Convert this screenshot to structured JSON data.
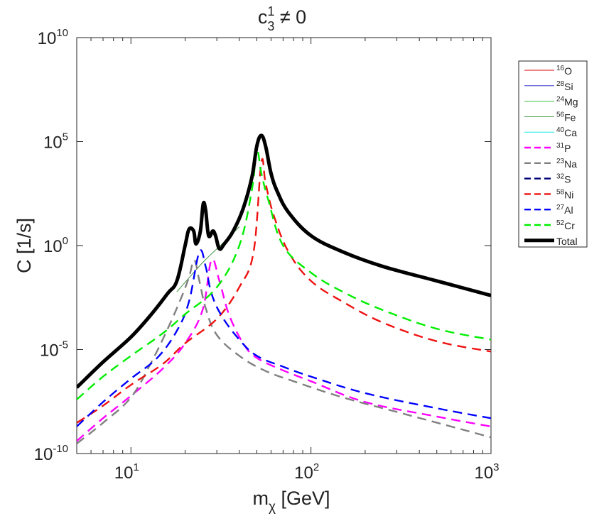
{
  "chart_data": {
    "type": "line",
    "title": {
      "base": "c",
      "sup": "1",
      "sub": "3",
      "rest": " ≠ 0"
    },
    "xlabel": {
      "base": "m",
      "sub": "χ",
      "rest": " [GeV]"
    },
    "ylabel": "C [1/s]",
    "x_scale": "log",
    "y_scale": "log",
    "xlim": [
      5,
      1000
    ],
    "ylim": [
      1e-10,
      10000000000.0
    ],
    "x_ticks": [
      {
        "value": 10,
        "base": "10",
        "exp": "1"
      },
      {
        "value": 100,
        "base": "10",
        "exp": "2"
      },
      {
        "value": 1000,
        "base": "10",
        "exp": "3"
      }
    ],
    "y_ticks": [
      {
        "value": 1e-10,
        "base": "10",
        "exp": "-10"
      },
      {
        "value": 1e-05,
        "base": "10",
        "exp": "-5"
      },
      {
        "value": 1,
        "base": "10",
        "exp": "0"
      },
      {
        "value": 100000.0,
        "base": "10",
        "exp": "5"
      },
      {
        "value": 10000000000.0,
        "base": "10",
        "exp": "10"
      }
    ],
    "grid": false,
    "legend_position": "outside-right",
    "series": [
      {
        "name": "O",
        "iso": "16",
        "color": "#dd0000",
        "dash": "solid",
        "width": "thin",
        "points": []
      },
      {
        "name": "Si",
        "iso": "28",
        "color": "#1a1abf",
        "dash": "solid",
        "width": "thin",
        "points": []
      },
      {
        "name": "Mg",
        "iso": "24",
        "color": "#22bb22",
        "dash": "solid",
        "width": "thin",
        "points": []
      },
      {
        "name": "Fe",
        "iso": "56",
        "color": "#2e8b2e",
        "dash": "solid",
        "width": "thin",
        "points": [
          [
            18,
            0.006
          ],
          [
            25,
            0.15
          ],
          [
            33,
            1.5
          ],
          [
            40,
            8
          ]
        ]
      },
      {
        "name": "Ca",
        "iso": "40",
        "color": "#00e5e5",
        "dash": "solid",
        "width": "thin",
        "points": []
      },
      {
        "name": "P",
        "iso": "31",
        "color": "#ff00ff",
        "dash": "dashed",
        "width": "normal",
        "points": [
          [
            5,
            4e-10
          ],
          [
            7,
            5e-09
          ],
          [
            10,
            6e-08
          ],
          [
            15,
            1.2e-06
          ],
          [
            20,
            2e-05
          ],
          [
            25,
            0.0008
          ],
          [
            28,
            0.2
          ],
          [
            31,
            0.02
          ],
          [
            35,
            0.0005
          ],
          [
            42,
            2e-05
          ],
          [
            50,
            4e-06
          ],
          [
            70,
            1e-06
          ],
          [
            100,
            3e-07
          ],
          [
            200,
            3e-08
          ],
          [
            500,
            6e-09
          ],
          [
            1000,
            2e-09
          ]
        ]
      },
      {
        "name": "Na",
        "iso": "23",
        "color": "#808080",
        "dash": "dashed",
        "width": "normal",
        "points": [
          [
            5,
            3e-10
          ],
          [
            7,
            3e-09
          ],
          [
            10,
            5e-08
          ],
          [
            13,
            2.5e-06
          ],
          [
            16,
            0.0001
          ],
          [
            19,
            0.003
          ],
          [
            21,
            0.03
          ],
          [
            22.5,
            0.2
          ],
          [
            24,
            0.02
          ],
          [
            26,
            0.001
          ],
          [
            30,
            5e-05
          ],
          [
            40,
            5e-06
          ],
          [
            55,
            1e-06
          ],
          [
            80,
            3e-07
          ],
          [
            150,
            5e-08
          ],
          [
            300,
            1e-08
          ],
          [
            600,
            2e-09
          ],
          [
            1000,
            6e-10
          ]
        ]
      },
      {
        "name": "S",
        "iso": "32",
        "color": "#00007a",
        "dash": "dashed",
        "width": "normal",
        "points": []
      },
      {
        "name": "Ni",
        "iso": "58",
        "color": "#ee1111",
        "dash": "dashed",
        "width": "normal",
        "points": [
          [
            5,
            3e-09
          ],
          [
            7,
            2e-08
          ],
          [
            10,
            2e-07
          ],
          [
            15,
            2e-06
          ],
          [
            20,
            2e-05
          ],
          [
            30,
            0.0003
          ],
          [
            40,
            0.01
          ],
          [
            48,
            0.5
          ],
          [
            53,
            10000
          ],
          [
            56,
            1000
          ],
          [
            62,
            30
          ],
          [
            75,
            0.5
          ],
          [
            100,
            0.02
          ],
          [
            150,
            0.002
          ],
          [
            250,
            0.0002
          ],
          [
            500,
            2.5e-05
          ],
          [
            1000,
            8e-06
          ]
        ]
      },
      {
        "name": "Al",
        "iso": "27",
        "color": "#0000ff",
        "dash": "dashed",
        "width": "normal",
        "points": [
          [
            5,
            2e-09
          ],
          [
            7,
            3e-08
          ],
          [
            10,
            4e-07
          ],
          [
            14,
            4e-06
          ],
          [
            18,
            8e-05
          ],
          [
            21,
            0.002
          ],
          [
            24,
            0.5
          ],
          [
            26,
            0.1
          ],
          [
            28,
            0.005
          ],
          [
            32,
            0.0004
          ],
          [
            40,
            3e-05
          ],
          [
            50,
            5e-06
          ],
          [
            70,
            1.5e-06
          ],
          [
            100,
            5e-07
          ],
          [
            200,
            8e-08
          ],
          [
            500,
            1.5e-08
          ],
          [
            1000,
            5e-09
          ]
        ]
      },
      {
        "name": "Cr",
        "iso": "52",
        "color": "#00ee00",
        "dash": "dashed",
        "width": "normal",
        "points": [
          [
            5,
            4e-08
          ],
          [
            7,
            5e-07
          ],
          [
            10,
            5e-06
          ],
          [
            15,
            6e-05
          ],
          [
            20,
            0.0005
          ],
          [
            30,
            0.01
          ],
          [
            40,
            1
          ],
          [
            47,
            500
          ],
          [
            50,
            40000
          ],
          [
            53,
            3000
          ],
          [
            58,
            150
          ],
          [
            70,
            1
          ],
          [
            100,
            0.05
          ],
          [
            150,
            0.006
          ],
          [
            250,
            0.0008
          ],
          [
            500,
            0.0001
          ],
          [
            1000,
            3e-05
          ]
        ]
      },
      {
        "name": "Total",
        "iso": "",
        "color": "#000000",
        "dash": "solid",
        "width": "thick",
        "points": [
          [
            5,
            1.5e-07
          ],
          [
            7,
            2.5e-06
          ],
          [
            10,
            4e-05
          ],
          [
            13,
            0.0005
          ],
          [
            16,
            0.005
          ],
          [
            18,
            0.02
          ],
          [
            20,
            1
          ],
          [
            21,
            6
          ],
          [
            22.3,
            5
          ],
          [
            23,
            1.2
          ],
          [
            24.3,
            5
          ],
          [
            25.2,
            100
          ],
          [
            26,
            50
          ],
          [
            27,
            3
          ],
          [
            28.5,
            5
          ],
          [
            29.5,
            3
          ],
          [
            31,
            0.7
          ],
          [
            33,
            1.2
          ],
          [
            37,
            5
          ],
          [
            42,
            60
          ],
          [
            47,
            2000
          ],
          [
            50,
            60000
          ],
          [
            53,
            200000
          ],
          [
            56,
            60000
          ],
          [
            60,
            3000
          ],
          [
            65,
            400
          ],
          [
            75,
            40
          ],
          [
            100,
            3
          ],
          [
            150,
            0.5
          ],
          [
            250,
            0.1
          ],
          [
            500,
            0.02
          ],
          [
            1000,
            0.004
          ]
        ]
      }
    ]
  }
}
